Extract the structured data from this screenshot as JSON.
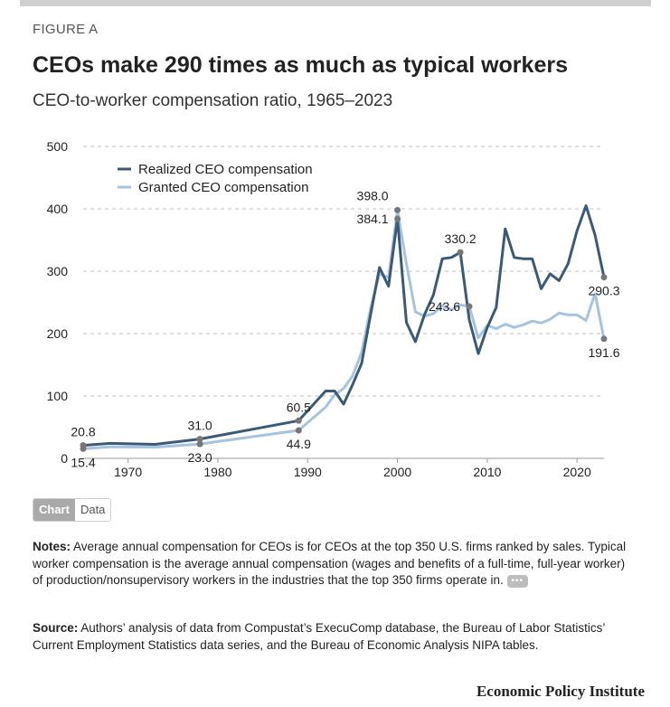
{
  "figure_label": "FIGURE A",
  "chart_data": {
    "type": "line",
    "title": "CEOs make 290 times as much as typical workers",
    "subtitle": "CEO-to-worker compensation ratio, 1965–2023",
    "xlabel": "",
    "ylabel": "",
    "xlim": [
      1965,
      2023
    ],
    "ylim": [
      0,
      500
    ],
    "y_ticks": [
      0,
      100,
      200,
      300,
      400,
      500
    ],
    "x_ticks": [
      1970,
      1980,
      1990,
      2000,
      2010,
      2020
    ],
    "grid": true,
    "legend": "top-left",
    "series": [
      {
        "name": "Realized CEO compensation",
        "color": "#3b5a78",
        "points": [
          [
            1965,
            20.8
          ],
          [
            1968,
            24
          ],
          [
            1973,
            22.5
          ],
          [
            1978,
            31.0
          ],
          [
            1989,
            60.5
          ],
          [
            1992,
            108
          ],
          [
            1993,
            108
          ],
          [
            1994,
            87
          ],
          [
            1995,
            118
          ],
          [
            1996,
            152
          ],
          [
            1997,
            230
          ],
          [
            1998,
            306
          ],
          [
            1999,
            276
          ],
          [
            2000,
            384.1
          ],
          [
            2001,
            218
          ],
          [
            2002,
            187
          ],
          [
            2003,
            230
          ],
          [
            2004,
            262
          ],
          [
            2005,
            320
          ],
          [
            2006,
            322
          ],
          [
            2007,
            330.2
          ],
          [
            2008,
            222
          ],
          [
            2009,
            168
          ],
          [
            2010,
            210
          ],
          [
            2011,
            242
          ],
          [
            2012,
            368
          ],
          [
            2013,
            322
          ],
          [
            2014,
            320
          ],
          [
            2015,
            320
          ],
          [
            2016,
            272
          ],
          [
            2017,
            296
          ],
          [
            2018,
            285
          ],
          [
            2019,
            312
          ],
          [
            2020,
            365
          ],
          [
            2021,
            405
          ],
          [
            2022,
            358
          ],
          [
            2023,
            290.3
          ]
        ]
      },
      {
        "name": "Granted CEO compensation",
        "color": "#a6c3e0",
        "points": [
          [
            1965,
            15.4
          ],
          [
            1968,
            18.5
          ],
          [
            1973,
            18
          ],
          [
            1978,
            23.0
          ],
          [
            1989,
            44.9
          ],
          [
            1992,
            82
          ],
          [
            1993,
            102
          ],
          [
            1994,
            112
          ],
          [
            1995,
            132
          ],
          [
            1996,
            170
          ],
          [
            1997,
            240
          ],
          [
            1998,
            296
          ],
          [
            1999,
            290
          ],
          [
            2000,
            398.0
          ],
          [
            2001,
            312
          ],
          [
            2002,
            235
          ],
          [
            2003,
            228
          ],
          [
            2004,
            232
          ],
          [
            2005,
            245
          ],
          [
            2006,
            238
          ],
          [
            2007,
            246
          ],
          [
            2008,
            243.6
          ],
          [
            2009,
            193
          ],
          [
            2010,
            213
          ],
          [
            2011,
            208
          ],
          [
            2012,
            215
          ],
          [
            2013,
            210
          ],
          [
            2014,
            214
          ],
          [
            2015,
            220
          ],
          [
            2016,
            217
          ],
          [
            2017,
            223
          ],
          [
            2018,
            233
          ],
          [
            2019,
            230
          ],
          [
            2020,
            230
          ],
          [
            2021,
            221
          ],
          [
            2022,
            264
          ],
          [
            2023,
            191.6
          ]
        ]
      }
    ],
    "annotations": [
      {
        "series": 0,
        "x": 1965,
        "y": 20.8,
        "text": "20.8",
        "pos": "above"
      },
      {
        "series": 1,
        "x": 1965,
        "y": 15.4,
        "text": "15.4",
        "pos": "below"
      },
      {
        "series": 0,
        "x": 1978,
        "y": 31.0,
        "text": "31.0",
        "pos": "above"
      },
      {
        "series": 1,
        "x": 1978,
        "y": 23.0,
        "text": "23.0",
        "pos": "below"
      },
      {
        "series": 0,
        "x": 1989,
        "y": 60.5,
        "text": "60.5",
        "pos": "above"
      },
      {
        "series": 1,
        "x": 1989,
        "y": 44.9,
        "text": "44.9",
        "pos": "below"
      },
      {
        "series": 1,
        "x": 2000,
        "y": 398.0,
        "text": "398.0",
        "pos": "above-left"
      },
      {
        "series": 0,
        "x": 2000,
        "y": 384.1,
        "text": "384.1",
        "pos": "left"
      },
      {
        "series": 0,
        "x": 2007,
        "y": 330.2,
        "text": "330.2",
        "pos": "above"
      },
      {
        "series": 1,
        "x": 2008,
        "y": 243.6,
        "text": "243.6",
        "pos": "left"
      },
      {
        "series": 0,
        "x": 2023,
        "y": 290.3,
        "text": "290.3",
        "pos": "below"
      },
      {
        "series": 1,
        "x": 2023,
        "y": 191.6,
        "text": "191.6",
        "pos": "below"
      }
    ]
  },
  "toggle": {
    "chart_label": "Chart",
    "data_label": "Data"
  },
  "notes": {
    "label": "Notes:",
    "text": "Average annual compensation for CEOs is for CEOs at the top 350 U.S. firms ranked by sales. Typical worker compensation is the average annual compensation (wages and benefits of a full-time, full-year worker) of production/nonsupervisory workers in the industries that the top 350 firms operate in.",
    "more": "•••"
  },
  "source": {
    "label": "Source:",
    "text": "Authors’ analysis of data from Compustat’s ExecuComp database, the Bureau of Labor Statistics’ Current Employment Statistics data series, and the Bureau of Economic Analysis NIPA tables."
  },
  "brand": "Economic Policy Institute"
}
